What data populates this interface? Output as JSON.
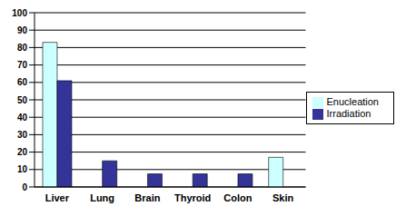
{
  "chart_data": {
    "type": "bar",
    "categories": [
      "Liver",
      "Lung",
      "Brain",
      "Thyroid",
      "Colon",
      "Skin"
    ],
    "series": [
      {
        "name": "Enucleation",
        "color": "#ccffff",
        "values": [
          83,
          0,
          0,
          0,
          0,
          17
        ]
      },
      {
        "name": "Irradiation",
        "color": "#333399",
        "values": [
          61,
          15,
          7.5,
          7.5,
          7.5,
          0
        ]
      }
    ],
    "ylim": [
      0,
      100
    ],
    "yticks": [
      0,
      10,
      20,
      30,
      40,
      50,
      60,
      70,
      80,
      90,
      100
    ],
    "grid": true,
    "legend": "right"
  }
}
